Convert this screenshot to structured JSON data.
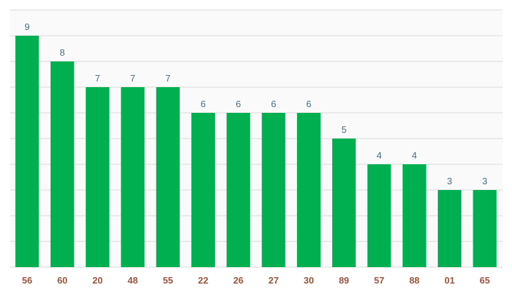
{
  "chart_data": {
    "type": "bar",
    "categories": [
      "56",
      "60",
      "20",
      "48",
      "55",
      "22",
      "26",
      "27",
      "30",
      "89",
      "57",
      "88",
      "01",
      "65"
    ],
    "values": [
      9,
      8,
      7,
      7,
      7,
      6,
      6,
      6,
      6,
      5,
      4,
      4,
      3,
      3
    ],
    "title": "",
    "xlabel": "",
    "ylabel": "",
    "ylim": [
      0,
      9
    ],
    "grid": true,
    "legend": "none",
    "colors": {
      "bar": "#00b050",
      "value_label": "#4a6f82",
      "category_label": "#a0533c",
      "grid": "#dadada",
      "plot_bg": "#fafafa"
    }
  }
}
